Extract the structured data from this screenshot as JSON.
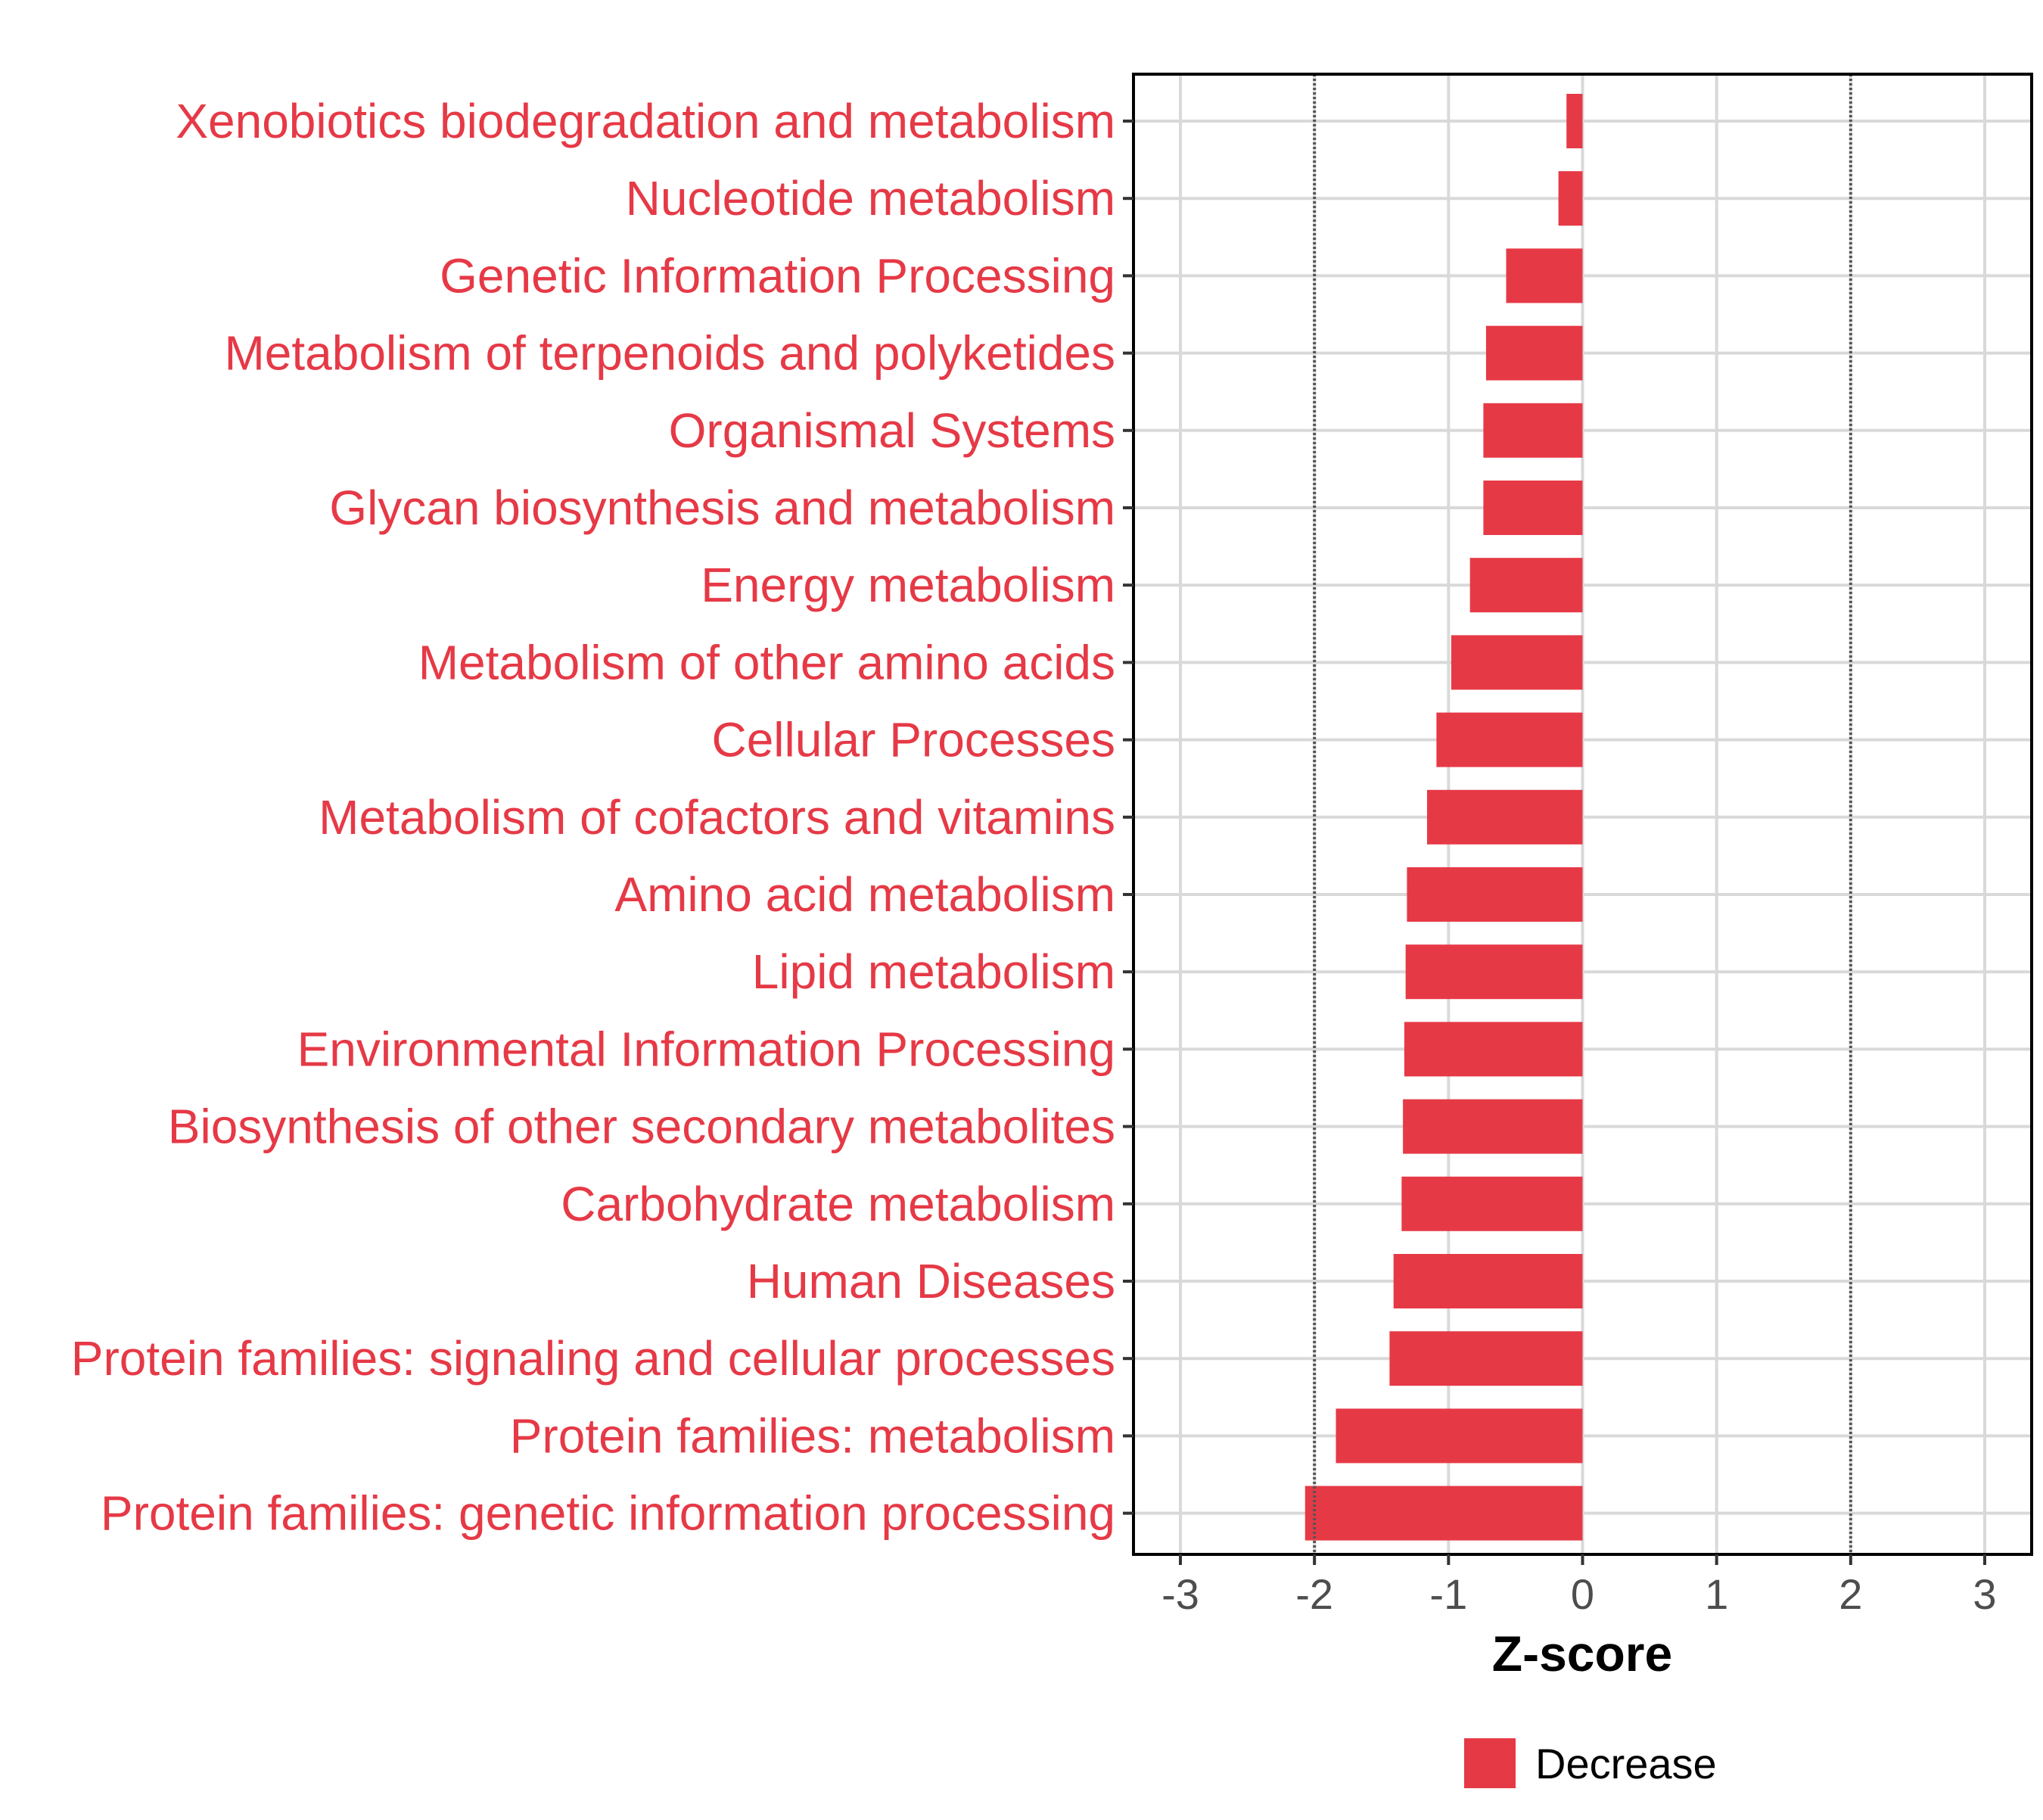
{
  "chart_data": {
    "type": "bar",
    "orientation": "horizontal",
    "title": "",
    "xlabel": "Z-score",
    "ylabel": "",
    "xlim": [
      -3.35,
      3.35
    ],
    "xticks": [
      -3,
      -2,
      -1,
      0,
      1,
      2,
      3
    ],
    "xtick_labels": [
      "-3",
      "-2",
      "-1",
      "0",
      "1",
      "2",
      "3"
    ],
    "reference_lines": [
      -2,
      2
    ],
    "grid": true,
    "legend": {
      "position": "bottom",
      "entries": [
        {
          "label": "Decrease",
          "color": "#e63946"
        }
      ]
    },
    "colors": {
      "decrease": "#e63946",
      "grid": "#d9d9d9",
      "reference_line": "#555555",
      "frame": "#000000",
      "tick_text": "#4d4d4d"
    },
    "categories": [
      "Xenobiotics biodegradation and metabolism",
      "Nucleotide metabolism",
      "Genetic Information Processing",
      "Metabolism of terpenoids and polyketides",
      "Organismal Systems",
      "Glycan biosynthesis and metabolism",
      "Energy metabolism",
      "Metabolism of other amino acids",
      "Cellular Processes",
      "Metabolism of cofactors and vitamins",
      "Amino acid metabolism",
      "Lipid metabolism",
      "Environmental Information Processing",
      "Biosynthesis of other secondary metabolites",
      "Carbohydrate metabolism",
      "Human Diseases",
      "Protein families: signaling and cellular processes",
      "Protein families: metabolism",
      "Protein families: genetic information processing"
    ],
    "values": [
      -0.12,
      -0.18,
      -0.57,
      -0.72,
      -0.74,
      -0.74,
      -0.84,
      -0.98,
      -1.09,
      -1.16,
      -1.31,
      -1.32,
      -1.33,
      -1.34,
      -1.35,
      -1.41,
      -1.44,
      -1.84,
      -2.07
    ]
  }
}
